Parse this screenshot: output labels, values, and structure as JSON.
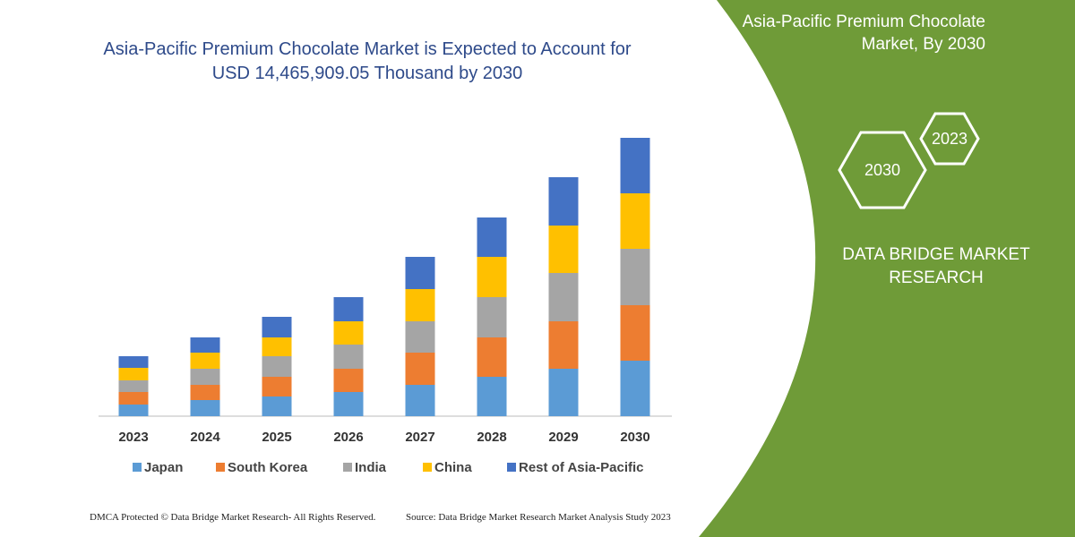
{
  "chart_data": {
    "type": "bar",
    "stacked": true,
    "title": "Asia-Pacific Premium Chocolate Market is Expected to Account for USD 14,465,909.05 Thousand by 2030",
    "categories": [
      "2023",
      "2024",
      "2025",
      "2026",
      "2027",
      "2028",
      "2029",
      "2030"
    ],
    "series": [
      {
        "name": "Japan",
        "color": "#5b9bd5",
        "values": [
          13,
          18,
          22,
          27,
          35,
          44,
          53,
          62
        ]
      },
      {
        "name": "South Korea",
        "color": "#ed7d31",
        "values": [
          14,
          17,
          22,
          26,
          36,
          44,
          53,
          62
        ]
      },
      {
        "name": "India",
        "color": "#a5a5a5",
        "values": [
          13,
          18,
          23,
          27,
          35,
          45,
          54,
          63
        ]
      },
      {
        "name": "China",
        "color": "#ffc000",
        "values": [
          14,
          18,
          21,
          26,
          36,
          45,
          53,
          62
        ]
      },
      {
        "name": "Rest of Asia-Pacific",
        "color": "#4472c4",
        "values": [
          13,
          17,
          23,
          27,
          36,
          44,
          54,
          62
        ]
      }
    ],
    "ylim": [
      0,
      320
    ],
    "grid": false,
    "legend": "bottom"
  },
  "side_panel": {
    "title": "Asia-Pacific Premium Chocolate Market, By 2030",
    "hexagons": [
      "2023",
      "2030"
    ],
    "brand": "DATA BRIDGE MARKET RESEARCH"
  },
  "footer": {
    "copyright": "DMCA Protected © Data Bridge Market Research-  All Rights Reserved.",
    "source": "Source: Data Bridge Market Research  Market Analysis Study 2023"
  }
}
